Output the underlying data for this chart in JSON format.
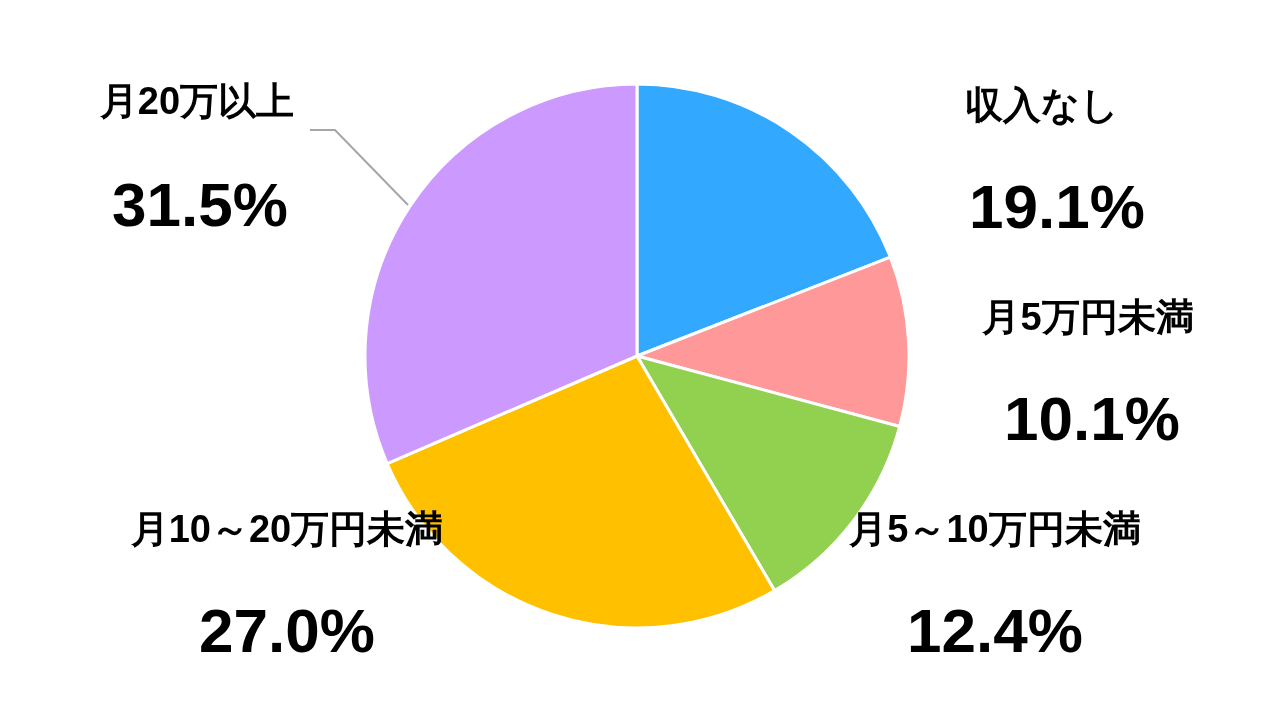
{
  "chart_data": {
    "type": "pie",
    "categories": [
      "収入なし",
      "月5万円未満",
      "月5～10万円未満",
      "月10～20万円未満",
      "月20万以上"
    ],
    "values": [
      19.1,
      10.1,
      12.4,
      27.0,
      31.5
    ],
    "colors": [
      "#33a8ff",
      "#ff9999",
      "#92d050",
      "#ffc000",
      "#cc99ff"
    ],
    "value_labels": [
      "19.1%",
      "10.1%",
      "12.4%",
      "27.0%",
      "31.5%"
    ]
  }
}
